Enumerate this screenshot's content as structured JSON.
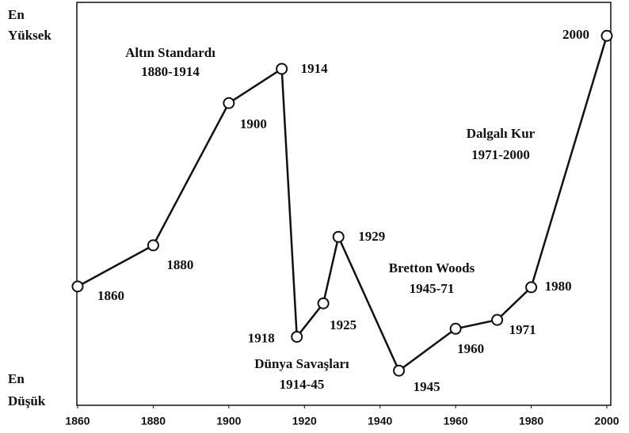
{
  "chart_data": {
    "type": "line",
    "x": [
      1860,
      1880,
      1900,
      1914,
      1918,
      1925,
      1929,
      1945,
      1960,
      1971,
      1980,
      2000
    ],
    "series": [
      {
        "name": null,
        "color": "#111111",
        "values": [
          29.5,
          39.7,
          75,
          83.5,
          17,
          25.3,
          41.8,
          8.6,
          19,
          21.2,
          29.3,
          91.7
        ]
      }
    ],
    "xlim": [
      1860,
      2000
    ],
    "xticks": [
      1860,
      1880,
      1900,
      1920,
      1940,
      1960,
      1980,
      2000
    ],
    "ylim": [
      0,
      100
    ],
    "y_top_label": [
      "En",
      "Yüksek"
    ],
    "y_bottom_label": [
      "En",
      "Düşük"
    ],
    "annotations": [
      {
        "lines": [
          "Altın Standardı",
          "1880-1914"
        ]
      },
      {
        "lines": [
          "Dalgalı Kur",
          "1971-2000"
        ]
      },
      {
        "lines": [
          "Bretton Woods",
          "1945-71"
        ]
      },
      {
        "lines": [
          "Dünya Savaşları",
          "1914-45"
        ]
      }
    ],
    "grid": false
  }
}
